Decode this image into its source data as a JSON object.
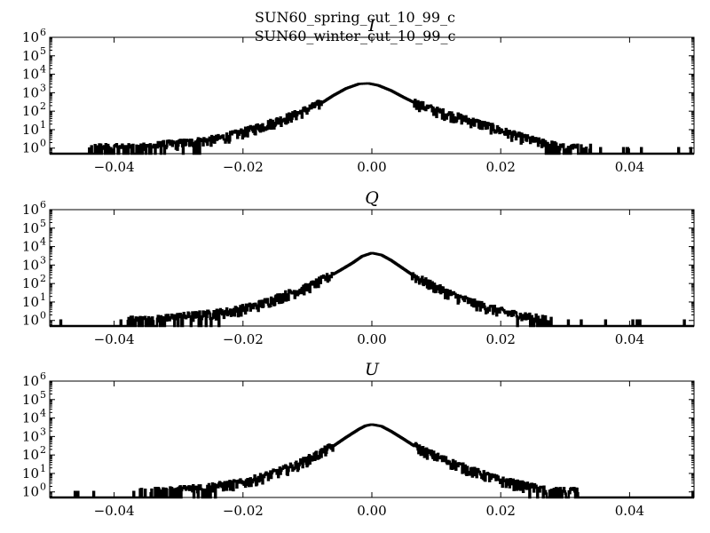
{
  "figure": {
    "suptitle_lines": [
      "SUN60_spring_cut_10_99_c",
      "SUN60_winter_cut_10_99_c"
    ]
  },
  "chart_data": [
    {
      "type": "line",
      "title": "I",
      "xlabel": "",
      "ylabel": "",
      "xlim": [
        -0.05,
        0.05
      ],
      "ylim": [
        0.5,
        1000000
      ],
      "yscale": "log",
      "xticks": [
        "−0.04",
        "−0.02",
        "0.00",
        "0.02",
        "0.04"
      ],
      "xtick_values": [
        -0.04,
        -0.02,
        0.0,
        0.02,
        0.04
      ],
      "yticks": [
        {
          "base": "10",
          "exp": "0",
          "value": 1
        },
        {
          "base": "10",
          "exp": "1",
          "value": 10
        },
        {
          "base": "10",
          "exp": "2",
          "value": 100
        },
        {
          "base": "10",
          "exp": "3",
          "value": 1000
        },
        {
          "base": "10",
          "exp": "4",
          "value": 10000
        },
        {
          "base": "10",
          "exp": "5",
          "value": 100000
        },
        {
          "base": "10",
          "exp": "6",
          "value": 1000000
        }
      ],
      "grid": false,
      "series": [
        {
          "x": [
            -0.044,
            -0.04,
            -0.036,
            -0.032,
            -0.028,
            -0.024,
            -0.02,
            -0.016,
            -0.012,
            -0.008,
            -0.006,
            -0.004,
            -0.002,
            -0.0005,
            0.001,
            0.003,
            0.005,
            0.007,
            0.01,
            0.014,
            0.018,
            0.022,
            0.026,
            0.03,
            0.034
          ],
          "y": [
            1,
            1,
            1,
            1.5,
            2,
            3,
            7,
            20,
            60,
            250,
            700,
            1700,
            3000,
            3200,
            2500,
            1300,
            550,
            250,
            100,
            40,
            15,
            5,
            2,
            1,
            1
          ]
        }
      ]
    },
    {
      "type": "line",
      "title": "Q",
      "xlabel": "",
      "ylabel": "",
      "xlim": [
        -0.05,
        0.05
      ],
      "ylim": [
        0.5,
        1000000
      ],
      "yscale": "log",
      "xticks": [
        "−0.04",
        "−0.02",
        "0.00",
        "0.02",
        "0.04"
      ],
      "xtick_values": [
        -0.04,
        -0.02,
        0.0,
        0.02,
        0.04
      ],
      "yticks": [
        {
          "base": "10",
          "exp": "0",
          "value": 1
        },
        {
          "base": "10",
          "exp": "1",
          "value": 10
        },
        {
          "base": "10",
          "exp": "2",
          "value": 100
        },
        {
          "base": "10",
          "exp": "3",
          "value": 1000
        },
        {
          "base": "10",
          "exp": "4",
          "value": 10000
        },
        {
          "base": "10",
          "exp": "5",
          "value": 100000
        },
        {
          "base": "10",
          "exp": "6",
          "value": 1000000
        }
      ],
      "grid": false,
      "series": [
        {
          "x": [
            -0.038,
            -0.034,
            -0.03,
            -0.026,
            -0.022,
            -0.018,
            -0.014,
            -0.01,
            -0.007,
            -0.005,
            -0.003,
            -0.0015,
            0.0,
            0.0015,
            0.003,
            0.005,
            0.007,
            0.01,
            0.013,
            0.016,
            0.02,
            0.024,
            0.028
          ],
          "y": [
            1,
            1,
            1.5,
            2,
            3,
            6,
            20,
            60,
            200,
            500,
            1300,
            3000,
            4500,
            3500,
            1800,
            600,
            200,
            60,
            20,
            8,
            3,
            1.5,
            1
          ]
        }
      ]
    },
    {
      "type": "line",
      "title": "U",
      "xlabel": "",
      "ylabel": "",
      "xlim": [
        -0.05,
        0.05
      ],
      "ylim": [
        0.5,
        1000000
      ],
      "yscale": "log",
      "xticks": [
        "−0.04",
        "−0.02",
        "0.00",
        "0.02",
        "0.04"
      ],
      "xtick_values": [
        -0.04,
        -0.02,
        0.0,
        0.02,
        0.04
      ],
      "yticks": [
        {
          "base": "10",
          "exp": "0",
          "value": 1
        },
        {
          "base": "10",
          "exp": "1",
          "value": 10
        },
        {
          "base": "10",
          "exp": "2",
          "value": 100
        },
        {
          "base": "10",
          "exp": "3",
          "value": 1000
        },
        {
          "base": "10",
          "exp": "4",
          "value": 10000
        },
        {
          "base": "10",
          "exp": "5",
          "value": 100000
        },
        {
          "base": "10",
          "exp": "6",
          "value": 1000000
        }
      ],
      "grid": false,
      "series": [
        {
          "x": [
            -0.036,
            -0.032,
            -0.028,
            -0.024,
            -0.02,
            -0.016,
            -0.012,
            -0.009,
            -0.006,
            -0.004,
            -0.002,
            -0.001,
            0.0,
            0.0015,
            0.003,
            0.005,
            0.007,
            0.01,
            0.013,
            0.016,
            0.02,
            0.024,
            0.028,
            0.032
          ],
          "y": [
            1,
            1,
            1.5,
            2,
            3,
            8,
            25,
            80,
            300,
            900,
            2500,
            3800,
            4500,
            3600,
            1900,
            700,
            250,
            80,
            30,
            12,
            4,
            2,
            1,
            1
          ]
        }
      ]
    }
  ]
}
